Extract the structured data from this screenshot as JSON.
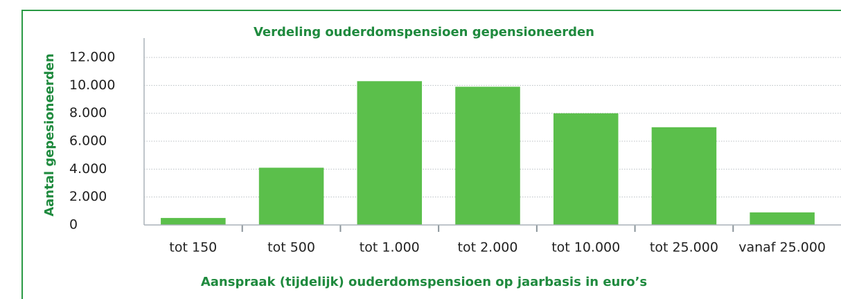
{
  "chart_data": {
    "type": "bar",
    "title": "Verdeling ouderdomspensioen gepensioneerden",
    "x_label": "Aanspraak (tijdelijk) ouderdomspensioen op jaarbasis in euro’s",
    "y_label": "Aantal gepesioneerden",
    "categories": [
      "tot 150",
      "tot 500",
      "tot 1.000",
      "tot 2.000",
      "tot 10.000",
      "tot 25.000",
      "vanaf 25.000"
    ],
    "values": [
      500,
      4100,
      10300,
      9900,
      8000,
      7000,
      900
    ],
    "color": "#5bbf4b",
    "ylim": [
      0,
      12000
    ],
    "yticks": [
      0,
      {
        "value": 2000,
        "label": "2.000"
      },
      {
        "value": 4000,
        "label": "4.000"
      },
      {
        "value": 6000,
        "label": "6.000"
      },
      {
        "value": 8000,
        "label": "8.000"
      },
      {
        "value": 10000,
        "label": "10.000"
      },
      {
        "value": 12000,
        "label": "12.000"
      }
    ],
    "grid": true
  }
}
